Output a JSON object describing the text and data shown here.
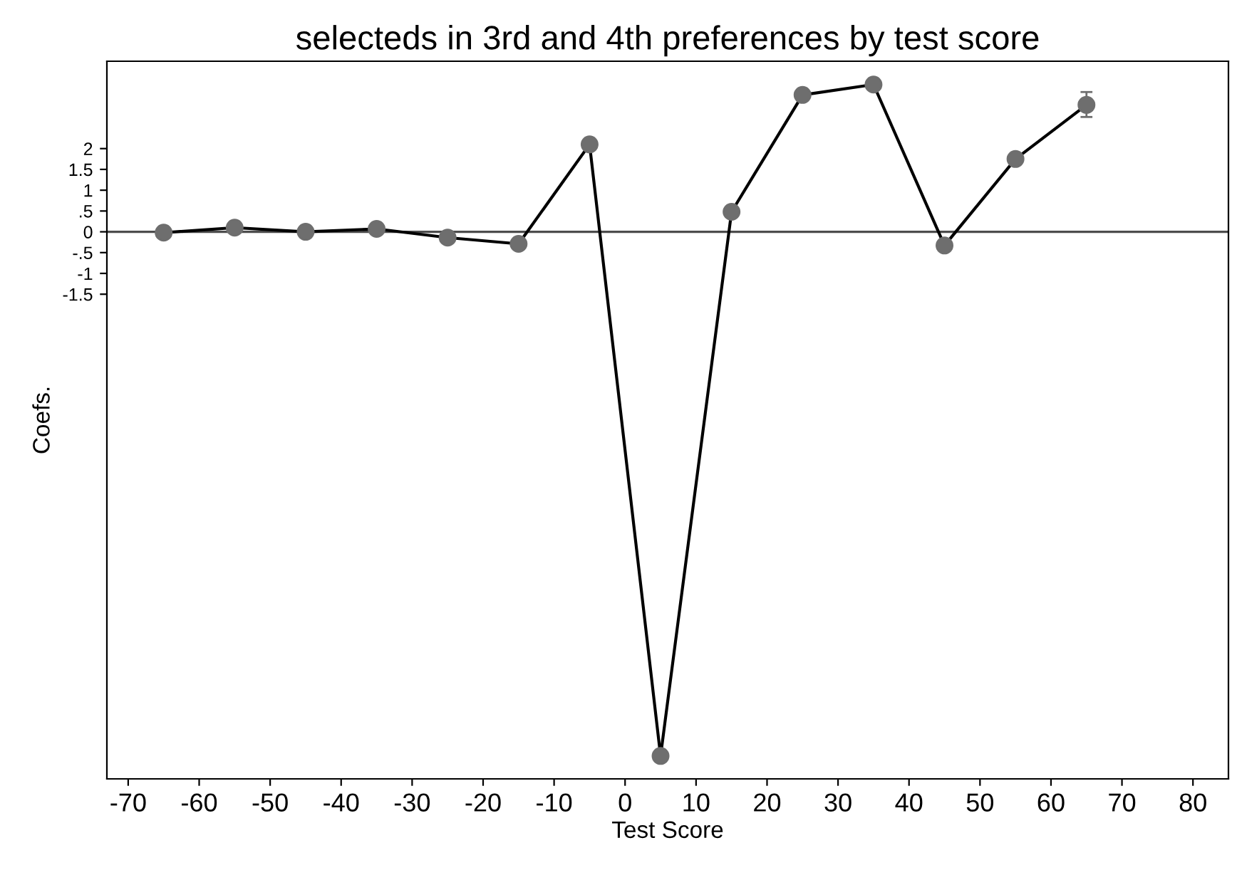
{
  "chart_data": {
    "type": "line",
    "title": "selecteds in 3rd and 4th preferences by test score",
    "xlabel": "Test Score",
    "ylabel": "Coefs.",
    "x": [
      -65,
      -55,
      -45,
      -35,
      -25,
      -15,
      -5,
      5,
      15,
      25,
      35,
      45,
      55,
      65
    ],
    "series": [
      {
        "color": "#000000",
        "colors": [
          "#6e6e6e",
          "#6e6e6e",
          "#6e6e6e",
          "#6e6e6e",
          "#6e6e6e",
          "#6e6e6e",
          "#6e6e6e",
          "#6e6e6e",
          "#6e6e6e",
          "#6e6e6e",
          "#6e6e6e",
          "#6e6e6e",
          "#6e6e6e",
          "#6e6e6e"
        ],
        "values": [
          -0.02,
          0.1,
          0,
          0.07,
          -0.14,
          -0.29,
          2.1,
          -12.6,
          0.48,
          3.29,
          3.54,
          -0.33,
          1.75,
          3.05
        ],
        "errors": [
          null,
          null,
          null,
          null,
          null,
          null,
          null,
          null,
          null,
          null,
          null,
          null,
          null,
          [
            2.76,
            3.36
          ]
        ]
      }
    ],
    "xlim": [
      -73,
      85
    ],
    "xticks": [
      -70,
      -60,
      -50,
      -40,
      -30,
      -20,
      -10,
      0,
      10,
      20,
      30,
      40,
      50,
      60,
      70,
      80
    ],
    "ylim": [
      -13.15,
      4.1
    ],
    "yticks": [
      -1.5,
      -1,
      {
        "value": -0.5,
        "label": "-.5"
      },
      0,
      {
        "value": 0.5,
        "label": ".5"
      },
      1,
      1.5,
      2
    ],
    "ref_lines": [
      {
        "axis": "y",
        "value": 0,
        "color": "#4d4d4d"
      }
    ],
    "grid": false,
    "marker": "circle",
    "line_style": "solid"
  }
}
